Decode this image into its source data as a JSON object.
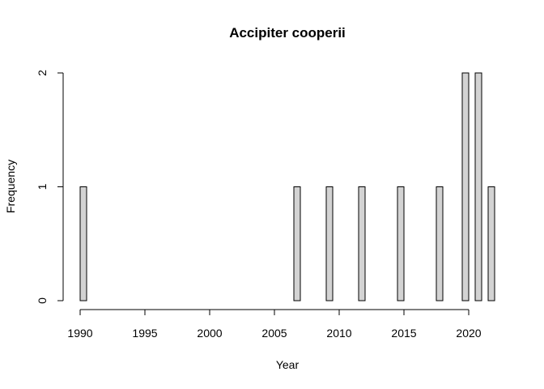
{
  "chart_data": {
    "type": "bar",
    "title": "Accipiter cooperii",
    "xlabel": "Year",
    "ylabel": "Frequency",
    "bin_width": 0.5,
    "xlim": [
      1990,
      2022
    ],
    "ylim": [
      0,
      2
    ],
    "x_ticks": [
      "1990",
      "1995",
      "2000",
      "2005",
      "2010",
      "2015",
      "2020"
    ],
    "y_ticks": [
      "0",
      "1",
      "2"
    ],
    "bin_starts": [
      1990,
      1990.5,
      1991,
      1991.5,
      1992,
      1992.5,
      1993,
      1993.5,
      1994,
      1994.5,
      1995,
      1995.5,
      1996,
      1996.5,
      1997,
      1997.5,
      1998,
      1998.5,
      1999,
      1999.5,
      2000,
      2000.5,
      2001,
      2001.5,
      2002,
      2002.5,
      2003,
      2003.5,
      2004,
      2004.5,
      2005,
      2005.5,
      2006,
      2006.5,
      2007,
      2007.5,
      2008,
      2008.5,
      2009,
      2009.5,
      2010,
      2010.5,
      2011,
      2011.5,
      2012,
      2012.5,
      2013,
      2013.5,
      2014,
      2014.5,
      2015,
      2015.5,
      2016,
      2016.5,
      2017,
      2017.5,
      2018,
      2018.5,
      2019,
      2019.5,
      2020,
      2020.5,
      2021,
      2021.5
    ],
    "values": [
      1,
      0,
      0,
      0,
      0,
      0,
      0,
      0,
      0,
      0,
      0,
      0,
      0,
      0,
      0,
      0,
      0,
      0,
      0,
      0,
      0,
      0,
      0,
      0,
      0,
      0,
      0,
      0,
      0,
      0,
      0,
      0,
      0,
      1,
      0,
      0,
      0,
      0,
      1,
      0,
      0,
      0,
      0,
      1,
      0,
      0,
      0,
      0,
      0,
      1,
      0,
      0,
      0,
      0,
      0,
      1,
      0,
      0,
      0,
      2,
      0,
      2,
      0,
      1
    ],
    "grid": false,
    "bar_color": "#d3d3d3",
    "edge_color": "#000000"
  }
}
